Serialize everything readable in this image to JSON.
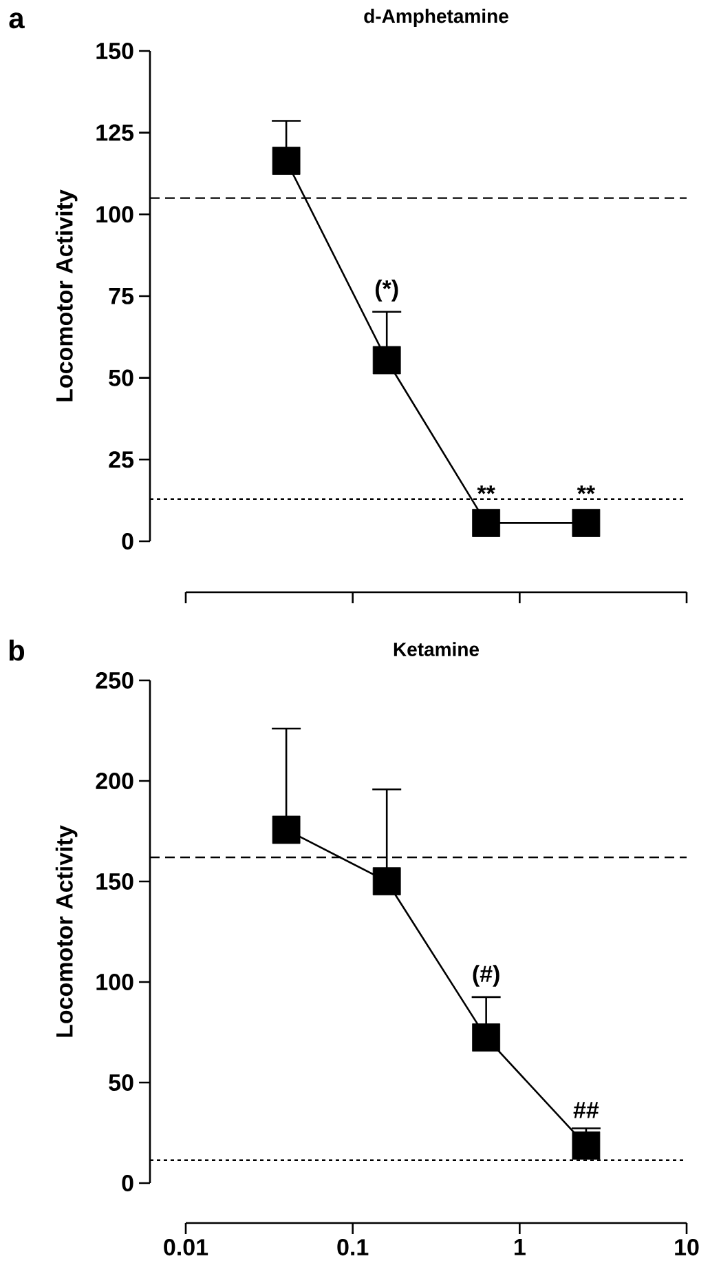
{
  "chart_data": [
    {
      "type": "line",
      "title": "d-Amphetamine",
      "ylabel": "Locomotor Activity",
      "log": "x",
      "tick_labels": "y",
      "marker": "square",
      "line_style": "solid",
      "xlim": [
        0.01,
        10
      ],
      "xticks": [
        0.01,
        0.1,
        1,
        10
      ],
      "ylim": [
        0,
        150
      ],
      "yticks": [
        0,
        25,
        50,
        75,
        100,
        125,
        150
      ],
      "x": [
        0.04,
        0.16,
        0.63,
        2.5
      ],
      "series": [
        {
          "color": "#000000",
          "values": [
            116.4,
            55.4,
            5.6,
            5.6
          ],
          "errors": [
            [
              116.4,
              128.6
            ],
            [
              55.4,
              70.2
            ],
            null,
            null
          ]
        }
      ],
      "ref_lines": [
        {
          "axis": "y",
          "value": 105,
          "line_style": "dashed"
        },
        {
          "axis": "y",
          "value": 12.9,
          "line_style": "dotted"
        }
      ],
      "annotations": [
        "a",
        {
          "text": "(*)",
          "x": 0.16,
          "y": 55.4
        },
        {
          "text": "**",
          "x": 0.63,
          "y": 5.6
        },
        {
          "text": "**",
          "x": 2.5,
          "y": 5.6
        }
      ]
    },
    {
      "type": "line",
      "title": "Ketamine",
      "ylabel": "Locomotor Activity",
      "log": "x",
      "marker": "square",
      "line_style": "solid",
      "xlim": [
        0.01,
        10
      ],
      "xticks": [
        0.01,
        0.1,
        1,
        10
      ],
      "ylim": [
        0,
        250
      ],
      "yticks": [
        0,
        50,
        100,
        150,
        200,
        250
      ],
      "x": [
        0.04,
        0.16,
        0.63,
        2.5
      ],
      "series": [
        {
          "color": "#000000",
          "values": [
            175.7,
            150.1,
            72.4,
            18.7
          ],
          "errors": [
            [
              175.7,
              226
            ],
            [
              150.1,
              195.8
            ],
            [
              72.4,
              92.5
            ],
            [
              18.7,
              27.2
            ]
          ]
        }
      ],
      "ref_lines": [
        {
          "axis": "y",
          "value": 162,
          "line_style": "dashed"
        },
        {
          "axis": "y",
          "value": 11.4,
          "line_style": "dotted"
        }
      ],
      "annotations": [
        "b",
        {
          "text": "(#)",
          "x": 0.63,
          "y": 72.4
        },
        {
          "text": "##",
          "x": 2.5,
          "y": 18.7
        }
      ]
    }
  ]
}
